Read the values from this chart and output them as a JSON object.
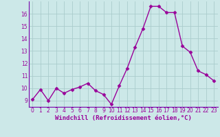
{
  "x": [
    0,
    1,
    2,
    3,
    4,
    5,
    6,
    7,
    8,
    9,
    10,
    11,
    12,
    13,
    14,
    15,
    16,
    17,
    18,
    19,
    20,
    21,
    22,
    23
  ],
  "y": [
    9.1,
    9.9,
    9.0,
    10.0,
    9.6,
    9.9,
    10.1,
    10.4,
    9.8,
    9.5,
    8.7,
    10.2,
    11.6,
    13.3,
    14.8,
    16.6,
    16.6,
    16.1,
    16.1,
    13.4,
    12.9,
    11.4,
    11.1,
    10.6
  ],
  "line_color": "#990099",
  "marker": "D",
  "marker_size": 2.5,
  "linewidth": 1.0,
  "bg_color": "#cce8e8",
  "grid_color": "#aacccc",
  "xlabel": "Windchill (Refroidissement éolien,°C)",
  "xlabel_color": "#990099",
  "tick_color": "#990099",
  "label_color": "#990099",
  "ylim": [
    8.5,
    17.0
  ],
  "xlim": [
    -0.5,
    23.5
  ],
  "yticks": [
    9,
    10,
    11,
    12,
    13,
    14,
    15,
    16
  ],
  "xticks": [
    0,
    1,
    2,
    3,
    4,
    5,
    6,
    7,
    8,
    9,
    10,
    11,
    12,
    13,
    14,
    15,
    16,
    17,
    18,
    19,
    20,
    21,
    22,
    23
  ],
  "tick_fontsize": 5.5,
  "xlabel_fontsize": 6.5,
  "spine_color": "#7700aa"
}
